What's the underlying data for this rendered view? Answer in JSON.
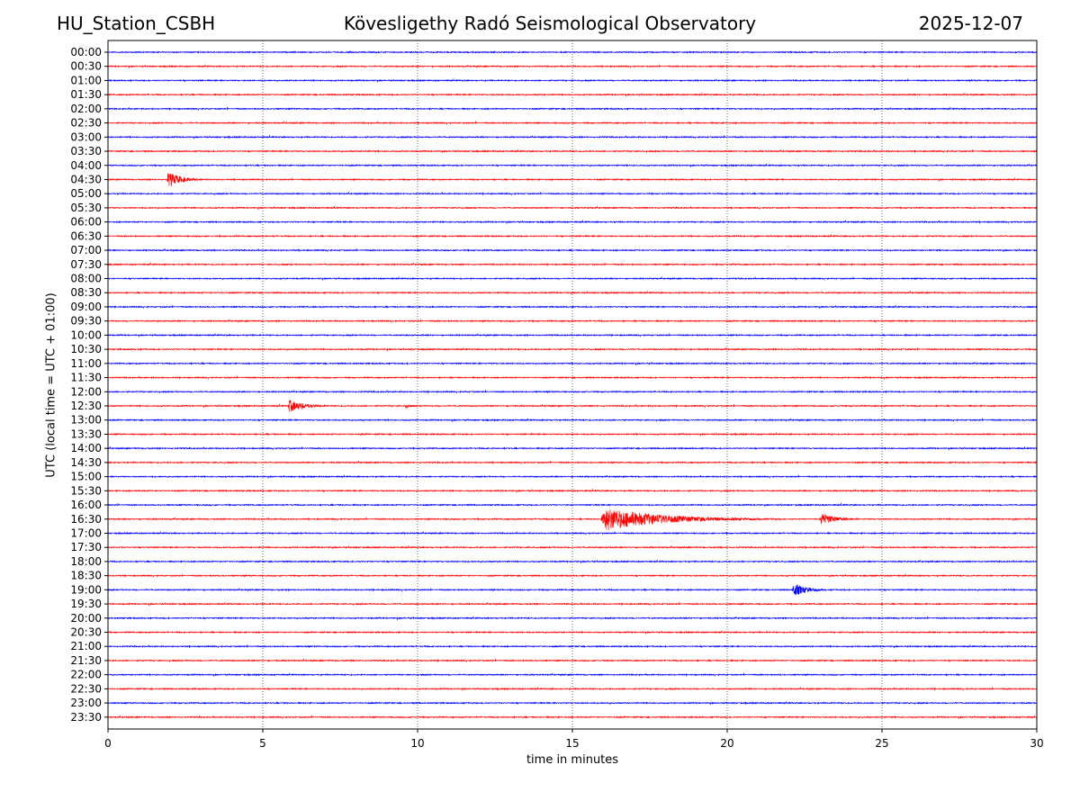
{
  "header": {
    "station": "HU_Station_CSBH",
    "observatory": "Kövesligethy Radó Seismological Observatory",
    "date": "2025-12-07"
  },
  "chart_data": {
    "type": "line",
    "title": "Kövesligethy Radó Seismological Observatory",
    "xlabel": "time in minutes",
    "ylabel": "UTC (local time = UTC + 01:00)",
    "xlim": [
      0,
      30
    ],
    "xticks": [
      0,
      5,
      10,
      15,
      20,
      25,
      30
    ],
    "grid_x_dotted": true,
    "colors": {
      "even_row": "#0000ff",
      "odd_row": "#ff0000"
    },
    "row_labels": [
      "00:00",
      "00:30",
      "01:00",
      "01:30",
      "02:00",
      "02:30",
      "03:00",
      "03:30",
      "04:00",
      "04:30",
      "05:00",
      "05:30",
      "06:00",
      "06:30",
      "07:00",
      "07:30",
      "08:00",
      "08:30",
      "09:00",
      "09:30",
      "10:00",
      "10:30",
      "11:00",
      "11:30",
      "12:00",
      "12:30",
      "13:00",
      "13:30",
      "14:00",
      "14:30",
      "15:00",
      "15:30",
      "16:00",
      "16:30",
      "17:00",
      "17:30",
      "18:00",
      "18:30",
      "19:00",
      "19:30",
      "20:00",
      "20:30",
      "21:00",
      "21:30",
      "22:00",
      "22:30",
      "23:00",
      "23:30"
    ],
    "events": [
      {
        "row": "04:30",
        "start_min": 1.9,
        "end_min": 3.3,
        "peak_amplitude": 0.7
      },
      {
        "row": "12:30",
        "start_min": 5.8,
        "end_min": 7.5,
        "peak_amplitude": 0.55
      },
      {
        "row": "12:30",
        "start_min": 9.6,
        "end_min": 10.2,
        "peak_amplitude": 0.25
      },
      {
        "row": "16:30",
        "start_min": 15.9,
        "end_min": 22.0,
        "peak_amplitude": 1.0
      },
      {
        "row": "16:30",
        "start_min": 23.0,
        "end_min": 24.6,
        "peak_amplitude": 0.55
      },
      {
        "row": "19:00",
        "start_min": 22.1,
        "end_min": 23.5,
        "peak_amplitude": 0.6
      }
    ]
  }
}
